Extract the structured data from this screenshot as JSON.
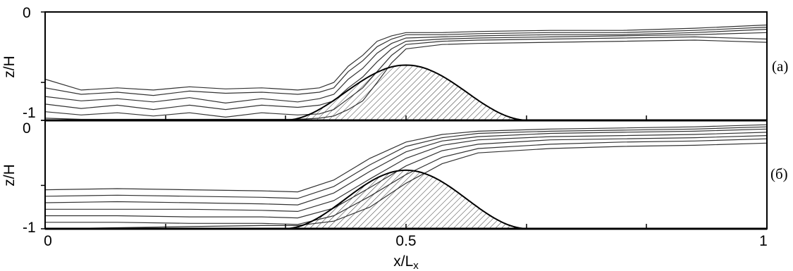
{
  "figure": {
    "xlabel": "x/L",
    "xlabel_sub": "x",
    "ylabel": "z/H"
  },
  "chart_data": [
    {
      "type": "line",
      "panel_label": "(a)",
      "ylabel": "z/H",
      "xlim": [
        0,
        1
      ],
      "ylim": [
        -1,
        0
      ],
      "y_tick_labels": [
        "0",
        "-1"
      ],
      "x_ticks": [
        0,
        0.167,
        0.333,
        0.5,
        0.667,
        0.833,
        1
      ],
      "y_ticks": [
        0,
        -0.65,
        -1
      ],
      "topography": {
        "shape": "cosine-bump",
        "center": 0.5,
        "halfwidth": 0.17,
        "peak": -0.49,
        "fill": "hatched"
      },
      "series": [
        {
          "x": [
            0,
            0.05,
            0.1,
            0.15,
            0.2,
            0.25,
            0.3,
            0.35,
            0.38,
            0.4,
            0.42,
            0.44,
            0.46,
            0.48,
            0.5,
            0.55,
            0.6,
            0.7,
            0.8,
            0.9,
            1
          ],
          "y": [
            -0.62,
            -0.72,
            -0.7,
            -0.72,
            -0.69,
            -0.71,
            -0.7,
            -0.72,
            -0.7,
            -0.65,
            -0.5,
            -0.4,
            -0.27,
            -0.22,
            -0.19,
            -0.19,
            -0.18,
            -0.17,
            -0.17,
            -0.15,
            -0.12
          ]
        },
        {
          "x": [
            0,
            0.05,
            0.1,
            0.15,
            0.2,
            0.25,
            0.3,
            0.35,
            0.38,
            0.4,
            0.42,
            0.44,
            0.46,
            0.48,
            0.5,
            0.55,
            0.6,
            0.7,
            0.8,
            0.9,
            1
          ],
          "y": [
            -0.7,
            -0.76,
            -0.74,
            -0.77,
            -0.73,
            -0.75,
            -0.74,
            -0.76,
            -0.74,
            -0.7,
            -0.55,
            -0.45,
            -0.32,
            -0.25,
            -0.21,
            -0.21,
            -0.2,
            -0.19,
            -0.19,
            -0.17,
            -0.14
          ]
        },
        {
          "x": [
            0,
            0.05,
            0.1,
            0.15,
            0.2,
            0.25,
            0.3,
            0.35,
            0.38,
            0.4,
            0.42,
            0.44,
            0.46,
            0.48,
            0.5,
            0.55,
            0.6,
            0.7,
            0.8,
            0.9,
            1
          ],
          "y": [
            -0.78,
            -0.82,
            -0.8,
            -0.83,
            -0.79,
            -0.84,
            -0.8,
            -0.83,
            -0.8,
            -0.76,
            -0.62,
            -0.52,
            -0.38,
            -0.29,
            -0.24,
            -0.23,
            -0.22,
            -0.21,
            -0.21,
            -0.19,
            -0.16
          ]
        },
        {
          "x": [
            0,
            0.05,
            0.1,
            0.15,
            0.2,
            0.25,
            0.3,
            0.35,
            0.38,
            0.4,
            0.42,
            0.44,
            0.46,
            0.48,
            0.5,
            0.55,
            0.6,
            0.7,
            0.8,
            0.9,
            1
          ],
          "y": [
            -0.85,
            -0.89,
            -0.86,
            -0.9,
            -0.86,
            -0.9,
            -0.86,
            -0.88,
            -0.86,
            -0.82,
            -0.7,
            -0.6,
            -0.46,
            -0.34,
            -0.27,
            -0.25,
            -0.24,
            -0.23,
            -0.22,
            -0.21,
            -0.19
          ]
        },
        {
          "x": [
            0,
            0.05,
            0.1,
            0.15,
            0.2,
            0.25,
            0.3,
            0.35,
            0.38,
            0.4,
            0.42,
            0.44,
            0.46,
            0.48,
            0.5,
            0.55,
            0.6,
            0.7,
            0.8,
            0.9,
            1
          ],
          "y": [
            -0.92,
            -0.95,
            -0.93,
            -0.96,
            -0.93,
            -0.97,
            -0.93,
            -0.95,
            -0.94,
            -0.9,
            -0.8,
            -0.7,
            -0.55,
            -0.4,
            -0.3,
            -0.27,
            -0.26,
            -0.25,
            -0.24,
            -0.23,
            -0.25
          ]
        },
        {
          "x": [
            0,
            0.05,
            0.1,
            0.15,
            0.2,
            0.25,
            0.3,
            0.35,
            0.38,
            0.4,
            0.42,
            0.44,
            0.46,
            0.48,
            0.5,
            0.55,
            0.6,
            0.7,
            0.8,
            0.9,
            1
          ],
          "y": [
            -0.98,
            -0.99,
            -0.99,
            -0.99,
            -0.99,
            -0.99,
            -0.99,
            -0.99,
            -0.98,
            -0.96,
            -0.9,
            -0.82,
            -0.65,
            -0.47,
            -0.34,
            -0.3,
            -0.29,
            -0.28,
            -0.27,
            -0.26,
            -0.28
          ]
        }
      ]
    },
    {
      "type": "line",
      "panel_label": "(б)",
      "ylabel": "z/H",
      "xlim": [
        0,
        1
      ],
      "ylim": [
        -1,
        0
      ],
      "y_tick_labels": [
        "0",
        "-1"
      ],
      "x_tick_labels": [
        "0",
        "0.5",
        "1"
      ],
      "x_ticks": [
        0,
        0.167,
        0.333,
        0.5,
        0.667,
        0.833,
        1
      ],
      "y_ticks": [
        0,
        -0.6,
        -1
      ],
      "topography": {
        "shape": "cosine-bump",
        "center": 0.5,
        "halfwidth": 0.17,
        "peak": -0.46,
        "fill": "hatched"
      },
      "series": [
        {
          "x": [
            0,
            0.1,
            0.2,
            0.3,
            0.35,
            0.4,
            0.45,
            0.5,
            0.55,
            0.6,
            0.7,
            0.8,
            0.9,
            1
          ],
          "y": [
            -0.64,
            -0.63,
            -0.64,
            -0.65,
            -0.66,
            -0.55,
            -0.35,
            -0.2,
            -0.13,
            -0.1,
            -0.08,
            -0.07,
            -0.06,
            -0.04
          ]
        },
        {
          "x": [
            0,
            0.1,
            0.2,
            0.3,
            0.35,
            0.4,
            0.45,
            0.5,
            0.55,
            0.6,
            0.7,
            0.8,
            0.9,
            1
          ],
          "y": [
            -0.7,
            -0.69,
            -0.7,
            -0.71,
            -0.72,
            -0.61,
            -0.41,
            -0.24,
            -0.16,
            -0.12,
            -0.1,
            -0.09,
            -0.08,
            -0.06
          ]
        },
        {
          "x": [
            0,
            0.1,
            0.2,
            0.3,
            0.35,
            0.4,
            0.45,
            0.5,
            0.55,
            0.6,
            0.7,
            0.8,
            0.9,
            1
          ],
          "y": [
            -0.76,
            -0.75,
            -0.76,
            -0.77,
            -0.78,
            -0.67,
            -0.47,
            -0.29,
            -0.19,
            -0.15,
            -0.12,
            -0.11,
            -0.1,
            -0.08
          ]
        },
        {
          "x": [
            0,
            0.1,
            0.2,
            0.3,
            0.35,
            0.4,
            0.45,
            0.5,
            0.55,
            0.6,
            0.7,
            0.8,
            0.9,
            1
          ],
          "y": [
            -0.82,
            -0.82,
            -0.82,
            -0.83,
            -0.84,
            -0.74,
            -0.54,
            -0.35,
            -0.23,
            -0.18,
            -0.15,
            -0.14,
            -0.13,
            -0.11
          ]
        },
        {
          "x": [
            0,
            0.1,
            0.2,
            0.3,
            0.35,
            0.4,
            0.45,
            0.5,
            0.55,
            0.6,
            0.7,
            0.8,
            0.9,
            1
          ],
          "y": [
            -0.88,
            -0.88,
            -0.89,
            -0.89,
            -0.9,
            -0.81,
            -0.62,
            -0.42,
            -0.28,
            -0.22,
            -0.18,
            -0.17,
            -0.16,
            -0.14
          ]
        },
        {
          "x": [
            0,
            0.1,
            0.2,
            0.3,
            0.35,
            0.4,
            0.45,
            0.5,
            0.55,
            0.6,
            0.7,
            0.8,
            0.9,
            1
          ],
          "y": [
            -0.94,
            -0.94,
            -0.95,
            -0.95,
            -0.96,
            -0.88,
            -0.7,
            -0.5,
            -0.34,
            -0.26,
            -0.22,
            -0.2,
            -0.19,
            -0.17
          ]
        },
        {
          "x": [
            0,
            0.1,
            0.2,
            0.3,
            0.35,
            0.4,
            0.45,
            0.5,
            0.55,
            0.6,
            0.7,
            0.8,
            0.9,
            1
          ],
          "y": [
            -1.0,
            -0.99,
            -0.98,
            -0.97,
            -0.97,
            -0.93,
            -0.8,
            -0.58,
            -0.4,
            -0.3,
            -0.26,
            -0.24,
            -0.23,
            -0.21
          ]
        }
      ]
    }
  ]
}
